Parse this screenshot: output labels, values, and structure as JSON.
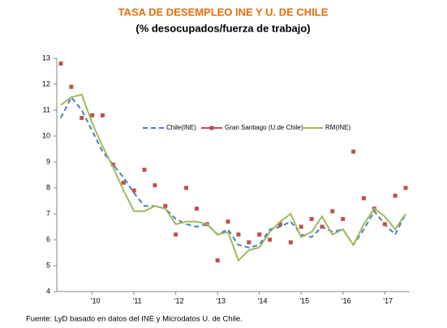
{
  "chart_data": {
    "type": "line",
    "title": "TASA  DE  DESEMPLEO INE Y U. DE CHILE",
    "subtitle": "(% desocupados/fuerza de trabajo)",
    "source": "Fuente: LyD basado en datos del INE y Microdatos U. de Chile.",
    "categories": [
      null,
      null,
      null,
      "'10",
      null,
      null,
      null,
      "'11",
      null,
      null,
      null,
      "'12",
      null,
      null,
      null,
      "'13",
      null,
      null,
      null,
      "'14",
      null,
      null,
      null,
      "'15",
      null,
      null,
      null,
      "'16",
      null,
      null,
      null,
      "'17",
      null,
      null
    ],
    "ylim": [
      4,
      13
    ],
    "yticks": [
      4,
      5,
      6,
      7,
      8,
      9,
      10,
      11,
      12,
      13
    ],
    "grid": false,
    "legend": "top",
    "series": [
      {
        "name": "Chile(INE)",
        "color": "#4a7ebb",
        "style": "dashed",
        "values": [
          10.7,
          11.5,
          11.0,
          10.2,
          9.4,
          8.9,
          8.4,
          7.8,
          7.3,
          7.3,
          7.2,
          6.8,
          6.6,
          6.5,
          6.6,
          6.2,
          6.4,
          5.8,
          5.7,
          5.8,
          6.4,
          6.5,
          6.7,
          6.2,
          6.1,
          6.5,
          6.3,
          6.4,
          5.8,
          6.4,
          7.1,
          6.6,
          6.2,
          7.0
        ]
      },
      {
        "name": "Gran Santiago (U.de Chile)",
        "color": "#c0504d",
        "style": "markers",
        "values": [
          12.8,
          11.9,
          10.7,
          10.8,
          10.8,
          8.9,
          8.2,
          7.9,
          8.7,
          8.1,
          7.3,
          6.2,
          8.0,
          7.2,
          6.6,
          5.2,
          6.7,
          6.2,
          5.9,
          6.2,
          6.0,
          6.6,
          5.9,
          6.5,
          6.8,
          6.5,
          7.1,
          6.8,
          9.4,
          7.6,
          7.2,
          6.6,
          7.7,
          8.0
        ]
      },
      {
        "name": "RM(INE)",
        "color": "#9bbb59",
        "style": "solid",
        "values": [
          11.2,
          11.5,
          11.6,
          10.5,
          9.6,
          8.8,
          7.9,
          7.1,
          7.1,
          7.3,
          7.2,
          6.6,
          6.7,
          6.7,
          6.6,
          6.2,
          6.3,
          5.2,
          5.6,
          5.7,
          6.3,
          6.7,
          7.0,
          6.1,
          6.3,
          6.9,
          6.2,
          6.4,
          5.8,
          6.6,
          7.2,
          6.9,
          6.4,
          7.0
        ]
      }
    ]
  }
}
